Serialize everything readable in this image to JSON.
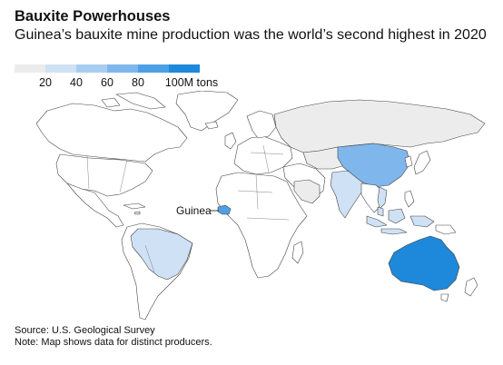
{
  "header": {
    "title": "Bauxite Powerhouses",
    "subtitle": "Guinea’s bauxite mine production was the world’s second highest in 2020"
  },
  "legend": {
    "labels": [
      "20",
      "40",
      "60",
      "80",
      "100M tons"
    ],
    "colors": [
      "#ececec",
      "#cfe1f4",
      "#a9cdf0",
      "#7fb6ec",
      "#4ea0e6",
      "#1e88da"
    ]
  },
  "map": {
    "no_data_color": "#ececec",
    "land_color": "#ffffff",
    "border_color": "#444444",
    "callout_label": "Guinea",
    "countries": [
      {
        "id": "australia",
        "color": "#1e88da"
      },
      {
        "id": "guinea",
        "color": "#4ea0e6"
      },
      {
        "id": "china",
        "color": "#7fb6ec"
      },
      {
        "id": "brazil",
        "color": "#cfe1f4"
      },
      {
        "id": "india",
        "color": "#cfe1f4"
      },
      {
        "id": "indonesia",
        "color": "#cfe1f4"
      },
      {
        "id": "russia",
        "color": "#ececec"
      },
      {
        "id": "kazakhstan",
        "color": "#ececec"
      },
      {
        "id": "saudi-arabia",
        "color": "#ececec"
      },
      {
        "id": "vietnam",
        "color": "#cfe1f4"
      },
      {
        "id": "malaysia",
        "color": "#cfe1f4"
      },
      {
        "id": "jamaica",
        "color": "#cfe1f4"
      }
    ]
  },
  "footer": {
    "source": "Source: U.S. Geological Survey",
    "note": "Note: Map shows data for distinct producers."
  }
}
